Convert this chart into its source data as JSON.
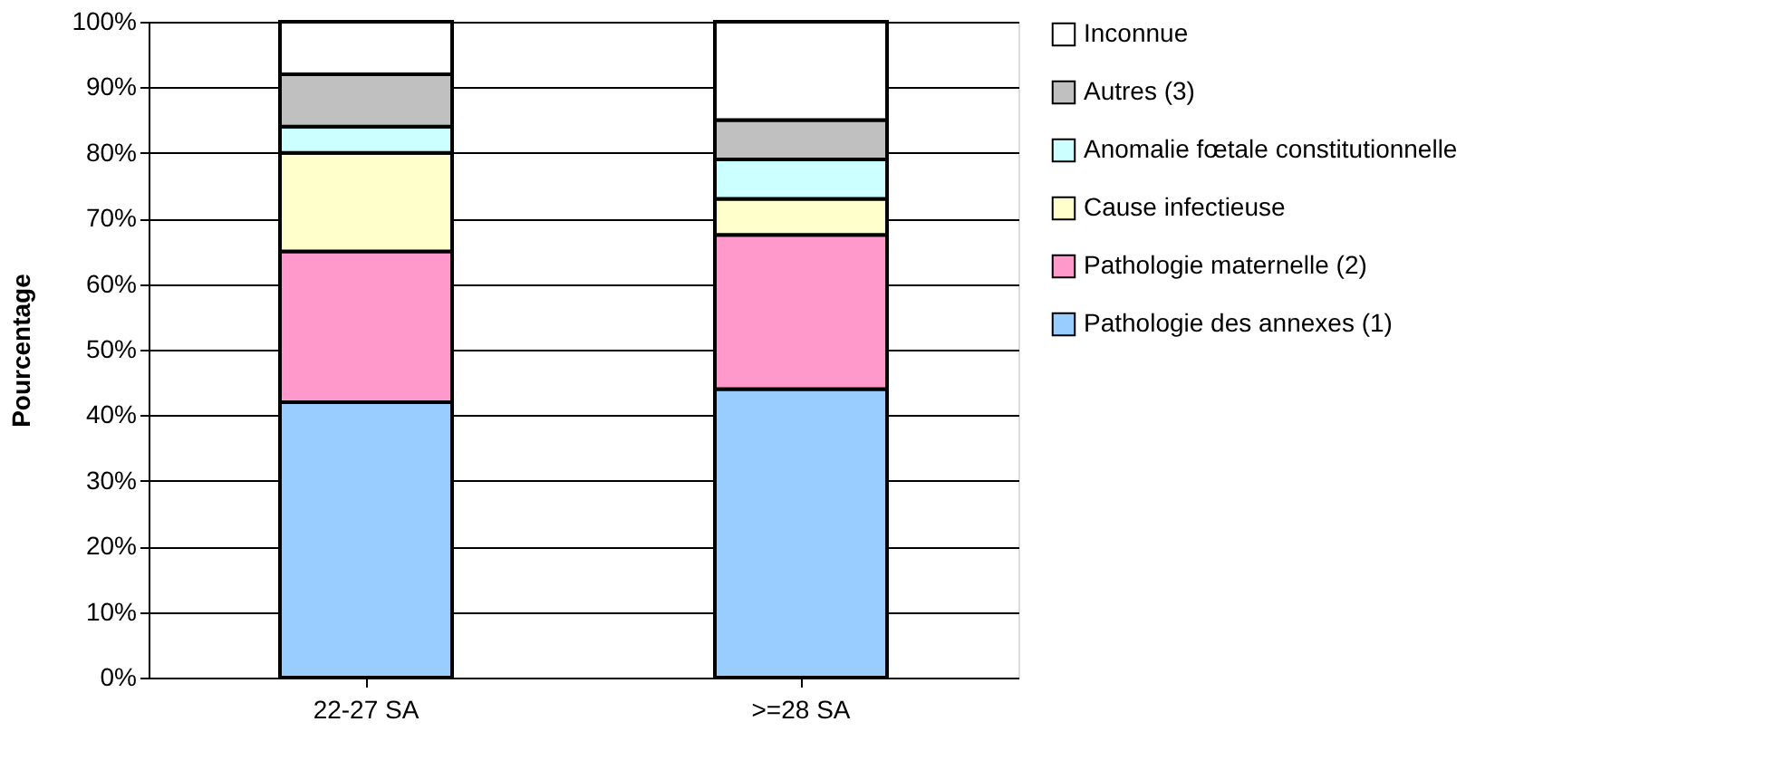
{
  "chart_data": {
    "type": "bar",
    "stacked": true,
    "ylabel": "Pourcentage",
    "categories": [
      "22-27 SA",
      ">=28 SA"
    ],
    "series": [
      {
        "name": "Pathologie des annexes (1)",
        "color": "#99ccff",
        "values": [
          42,
          44
        ]
      },
      {
        "name": "Pathologie maternelle (2)",
        "color": "#ff99cc",
        "values": [
          23,
          23.5
        ]
      },
      {
        "name": "Cause infectieuse",
        "color": "#ffffcc",
        "values": [
          15,
          5.5
        ]
      },
      {
        "name": "Anomalie fœtale constitutionnelle",
        "color": "#ccffff",
        "values": [
          4,
          6
        ]
      },
      {
        "name": "Autres (3)",
        "color": "#c0c0c0",
        "values": [
          8,
          6
        ]
      },
      {
        "name": "Inconnue",
        "color": "#ffffff",
        "values": [
          8,
          15
        ]
      }
    ],
    "ylim": [
      0,
      100
    ],
    "yticks": [
      {
        "value": 0,
        "label": "0%"
      },
      {
        "value": 10,
        "label": "10%"
      },
      {
        "value": 20,
        "label": "20%"
      },
      {
        "value": 30,
        "label": "30%"
      },
      {
        "value": 40,
        "label": "40%"
      },
      {
        "value": 50,
        "label": "50%"
      },
      {
        "value": 60,
        "label": "60%"
      },
      {
        "value": 70,
        "label": "70%"
      },
      {
        "value": 80,
        "label": "80%"
      },
      {
        "value": 90,
        "label": "90%"
      },
      {
        "value": 100,
        "label": "100%"
      }
    ],
    "grid": "y",
    "legend": "right"
  }
}
